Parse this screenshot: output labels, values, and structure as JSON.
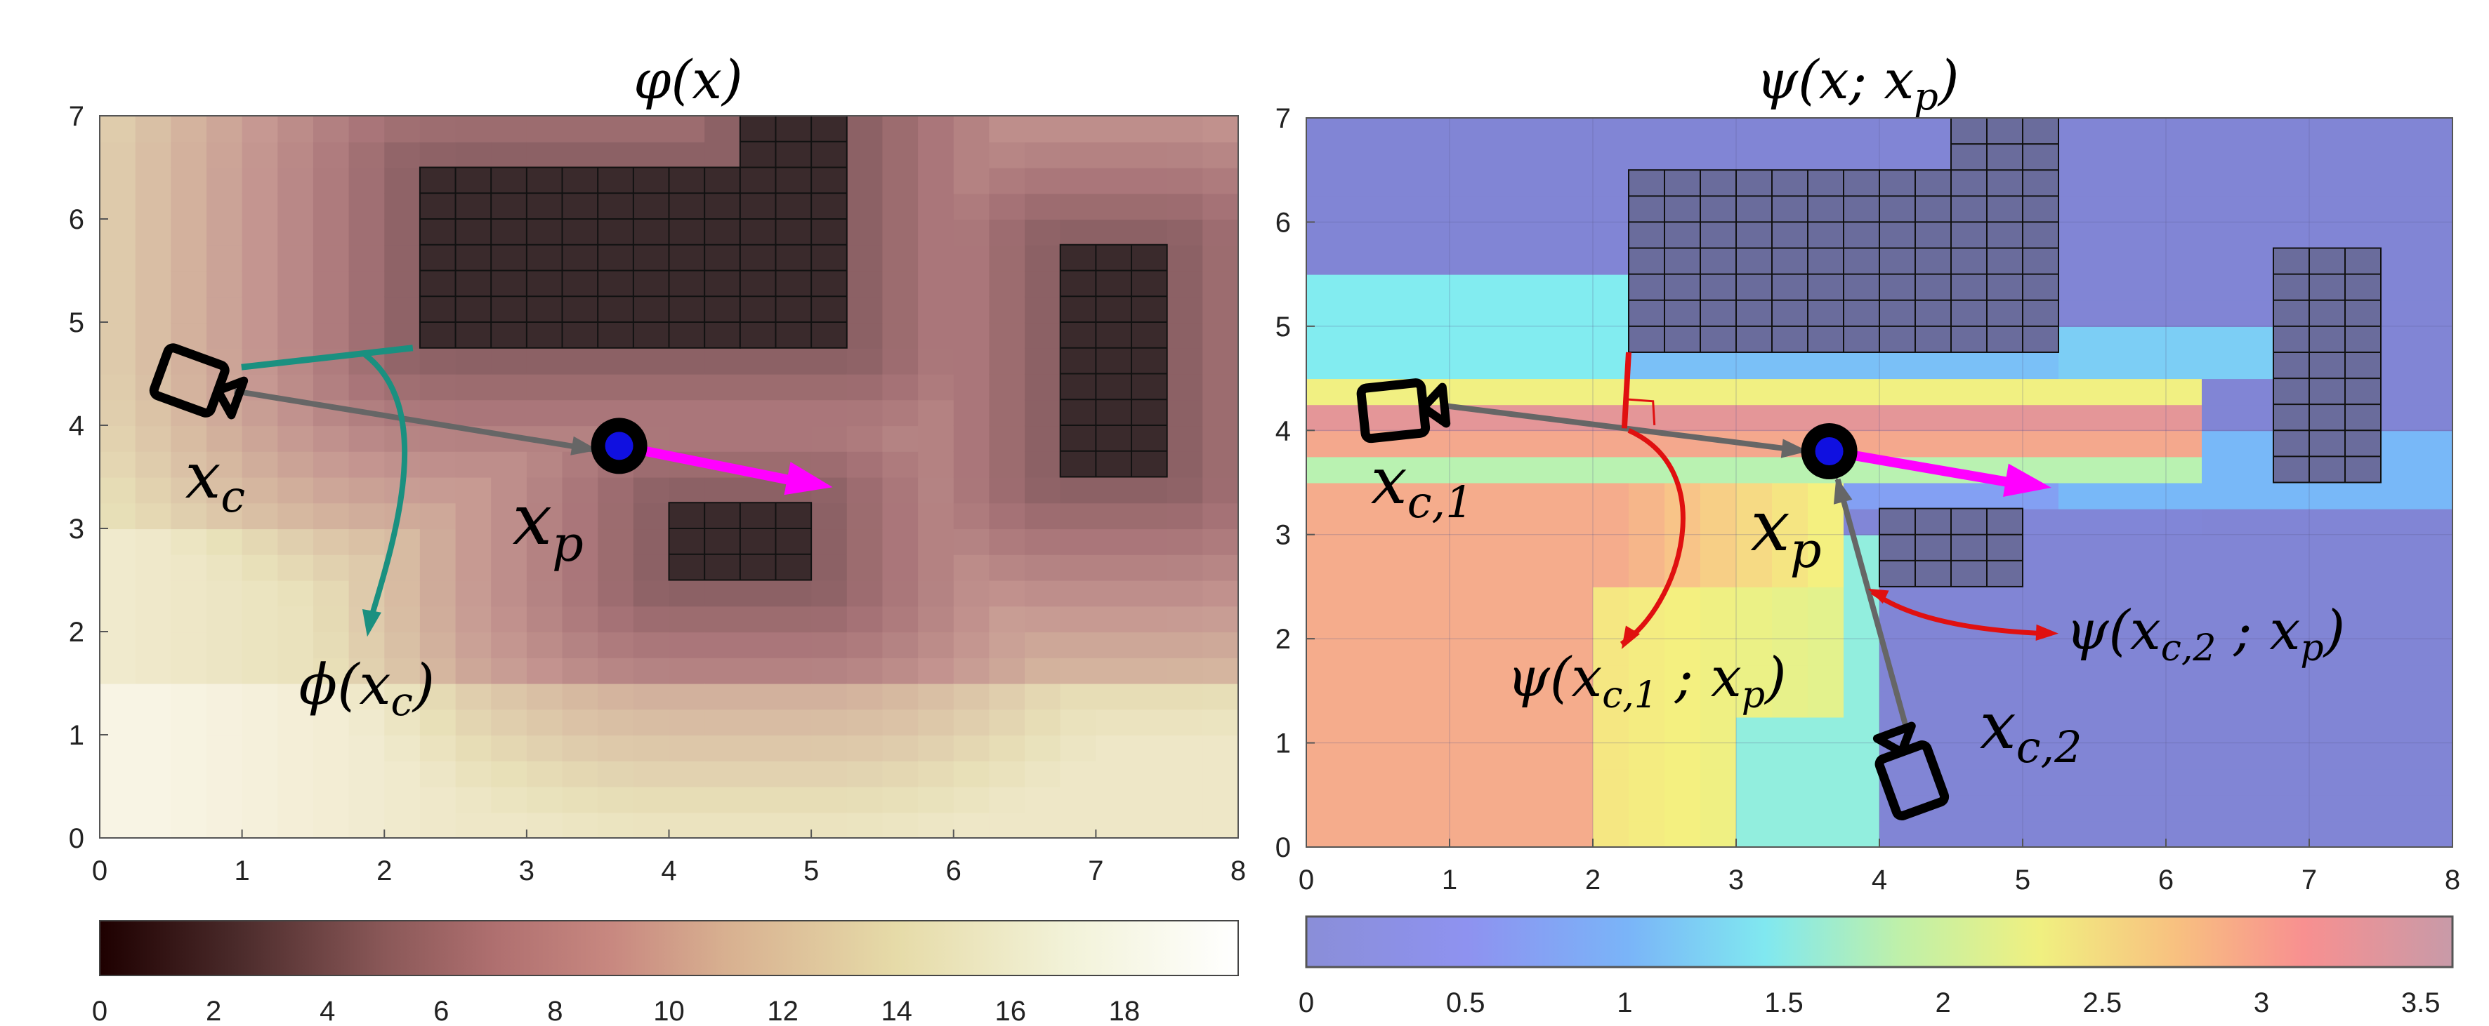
{
  "chart_data": [
    {
      "type": "heatmap",
      "title": "φ(x)",
      "xlim": [
        0,
        8
      ],
      "ylim": [
        0,
        7
      ],
      "xticks": [
        "0",
        "1",
        "2",
        "3",
        "4",
        "5",
        "6",
        "7",
        "8"
      ],
      "yticks": [
        "0",
        "1",
        "2",
        "3",
        "4",
        "5",
        "6",
        "7"
      ],
      "colorbar": {
        "ticks": [
          "0",
          "2",
          "4",
          "6",
          "8",
          "10",
          "12",
          "14",
          "16",
          "18"
        ],
        "range": [
          0,
          20
        ],
        "colormap": "pink"
      },
      "obstacles": [
        {
          "x0": 2.25,
          "y0": 4.75,
          "x1": 4.5,
          "y1": 6.5
        },
        {
          "x0": 4.5,
          "y0": 4.75,
          "x1": 5.25,
          "y1": 7.0
        },
        {
          "x0": 4.0,
          "y0": 2.5,
          "x1": 5.0,
          "y1": 3.25
        },
        {
          "x0": 6.75,
          "y0": 3.5,
          "x1": 7.5,
          "y1": 5.75
        }
      ],
      "camera": {
        "x": 0.7,
        "y": 4.4
      },
      "target": {
        "x": 3.65,
        "y": 3.8
      },
      "heading": {
        "x": 5.15,
        "y": 3.4
      },
      "labels": {
        "camera": "x_c",
        "target": "x_p",
        "value": "φ(x_c)"
      }
    },
    {
      "type": "heatmap",
      "title": "ψ(x; x_p)",
      "xlim": [
        0,
        8
      ],
      "ylim": [
        0,
        7
      ],
      "xticks": [
        "0",
        "1",
        "2",
        "3",
        "4",
        "5",
        "6",
        "7",
        "8"
      ],
      "yticks": [
        "0",
        "1",
        "2",
        "3",
        "4",
        "5",
        "6",
        "7"
      ],
      "colorbar": {
        "ticks": [
          "0",
          "0.5",
          "1",
          "1.5",
          "2",
          "2.5",
          "3",
          "3.5"
        ],
        "range": [
          0,
          3.6
        ],
        "colormap": "jet"
      },
      "obstacles": [
        {
          "x0": 2.25,
          "y0": 4.75,
          "x1": 4.5,
          "y1": 6.5
        },
        {
          "x0": 4.5,
          "y0": 4.75,
          "x1": 5.25,
          "y1": 7.0
        },
        {
          "x0": 4.0,
          "y0": 2.5,
          "x1": 5.0,
          "y1": 3.25
        },
        {
          "x0": 6.75,
          "y0": 3.5,
          "x1": 7.5,
          "y1": 5.75
        }
      ],
      "cameras": [
        {
          "x": 0.7,
          "y": 4.2
        },
        {
          "x": 4.3,
          "y": 0.6
        }
      ],
      "target": {
        "x": 3.65,
        "y": 3.8
      },
      "heading": {
        "x": 5.2,
        "y": 3.45
      },
      "labels": {
        "camera1": "x_c,1",
        "camera2": "x_c,2",
        "target": "x_p",
        "value1": "ψ(x_c,1 ; x_p)",
        "value2": "ψ(x_c,2 ; x_p)"
      }
    }
  ],
  "colors": {
    "obstacle_left": "#3a2a2c",
    "obstacle_right": "#6a6c9c",
    "target_ring": "#000000",
    "target_fill": "#1010e0",
    "heading_arrow": "#ff00ff",
    "view_ray": "#666666",
    "teal_arrow": "#1a9080",
    "red_arrow": "#e01010",
    "camera_stroke": "#000000"
  }
}
